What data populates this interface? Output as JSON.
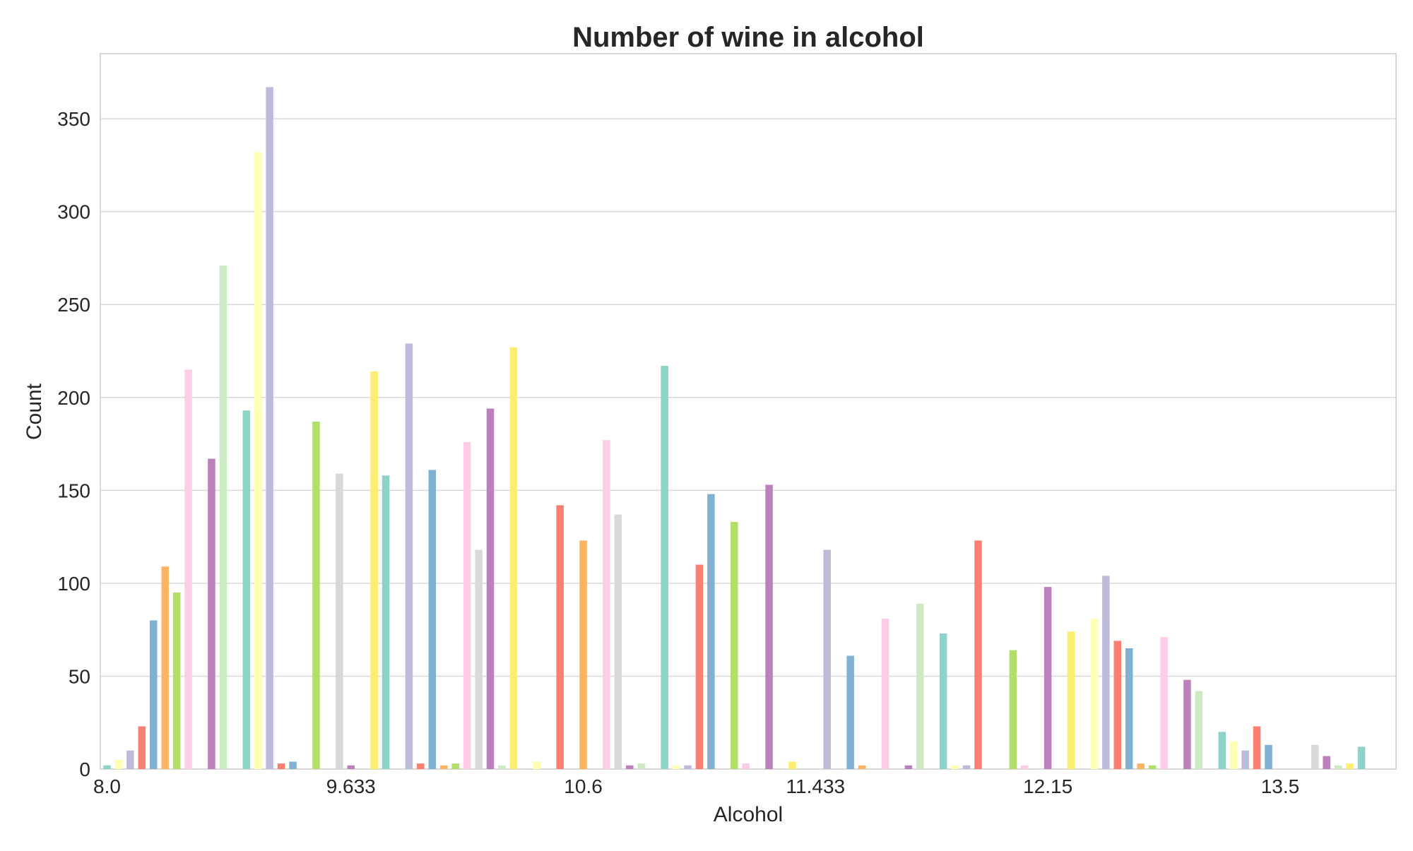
{
  "chart_data": {
    "type": "bar",
    "title": "Number of wine in alcohol",
    "xlabel": "Alcohol",
    "ylabel": "Count",
    "ylim": [
      0,
      385
    ],
    "yticks": [
      0,
      50,
      100,
      150,
      200,
      250,
      300,
      350
    ],
    "xtick_labels": [
      "8.0",
      "9.633",
      "10.6",
      "11.433",
      "12.15",
      "13.5"
    ],
    "xtick_positions": [
      0,
      21,
      41,
      61,
      81,
      101
    ],
    "grid": true,
    "palette": [
      "#8dd3c7",
      "#ffffb3",
      "#bebada",
      "#fb8072",
      "#80b1d3",
      "#fdb462",
      "#b3de69",
      "#fccde5",
      "#d9d9d9",
      "#bc80bd",
      "#ccebc5",
      "#ffed6f"
    ],
    "values": [
      2,
      5,
      10,
      23,
      80,
      109,
      95,
      215,
      0,
      167,
      271,
      0,
      193,
      332,
      367,
      3,
      4,
      0,
      187,
      0,
      159,
      2,
      0,
      214,
      158,
      0,
      229,
      3,
      161,
      2,
      3,
      176,
      118,
      194,
      2,
      227,
      0,
      4,
      0,
      142,
      0,
      123,
      0,
      177,
      137,
      2,
      3,
      0,
      217,
      2,
      2,
      110,
      148,
      0,
      133,
      3,
      0,
      153,
      0,
      4,
      0,
      0,
      118,
      0,
      61,
      2,
      0,
      81,
      0,
      2,
      89,
      0,
      73,
      2,
      2,
      123,
      0,
      0,
      64,
      2,
      0,
      98,
      0,
      74,
      0,
      81,
      104,
      69,
      65,
      3,
      2,
      71,
      0,
      48,
      42,
      0,
      20,
      15,
      10,
      23,
      13,
      0,
      0,
      0,
      13,
      7,
      2,
      3,
      12
    ]
  }
}
